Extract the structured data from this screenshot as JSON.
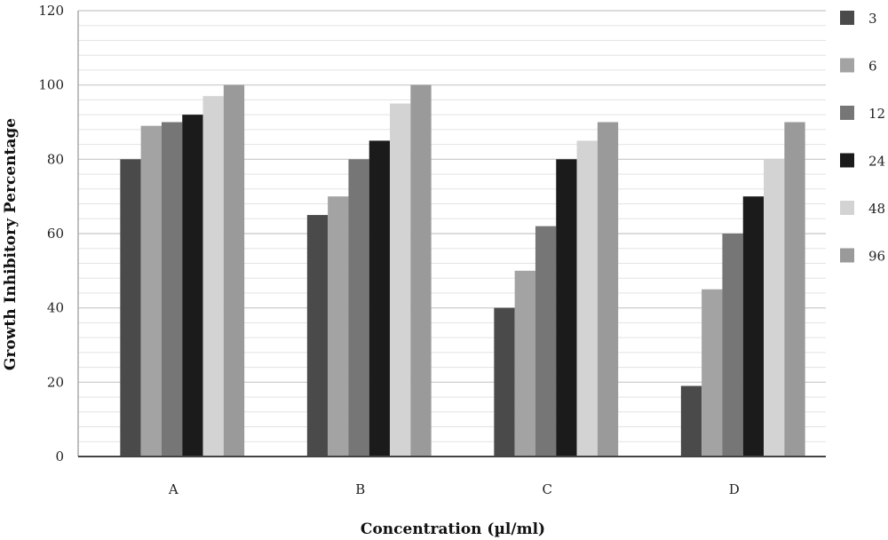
{
  "chart_data": {
    "type": "bar",
    "xlabel": "Concentration (µl/ml)",
    "ylabel": "Growth Inhibitory Percentage",
    "ylim": [
      0,
      120
    ],
    "yticks": [
      0,
      20,
      40,
      60,
      80,
      100,
      120
    ],
    "minor_grid_step": 4,
    "grid": true,
    "legend_position": "right",
    "categories": [
      "A",
      "B",
      "C",
      "D"
    ],
    "series": [
      {
        "name": "3",
        "color": "#4a4a4a",
        "values": [
          80,
          65,
          40,
          19
        ]
      },
      {
        "name": "6",
        "color": "#a3a3a3",
        "values": [
          89,
          70,
          50,
          45
        ]
      },
      {
        "name": "12",
        "color": "#767676",
        "values": [
          90,
          80,
          62,
          60
        ]
      },
      {
        "name": "24",
        "color": "#1b1b1b",
        "values": [
          92,
          85,
          80,
          70
        ]
      },
      {
        "name": "48",
        "color": "#d3d3d3",
        "values": [
          97,
          95,
          85,
          80
        ]
      },
      {
        "name": "96",
        "color": "#9a9a9a",
        "values": [
          100,
          100,
          90,
          90
        ]
      }
    ]
  }
}
